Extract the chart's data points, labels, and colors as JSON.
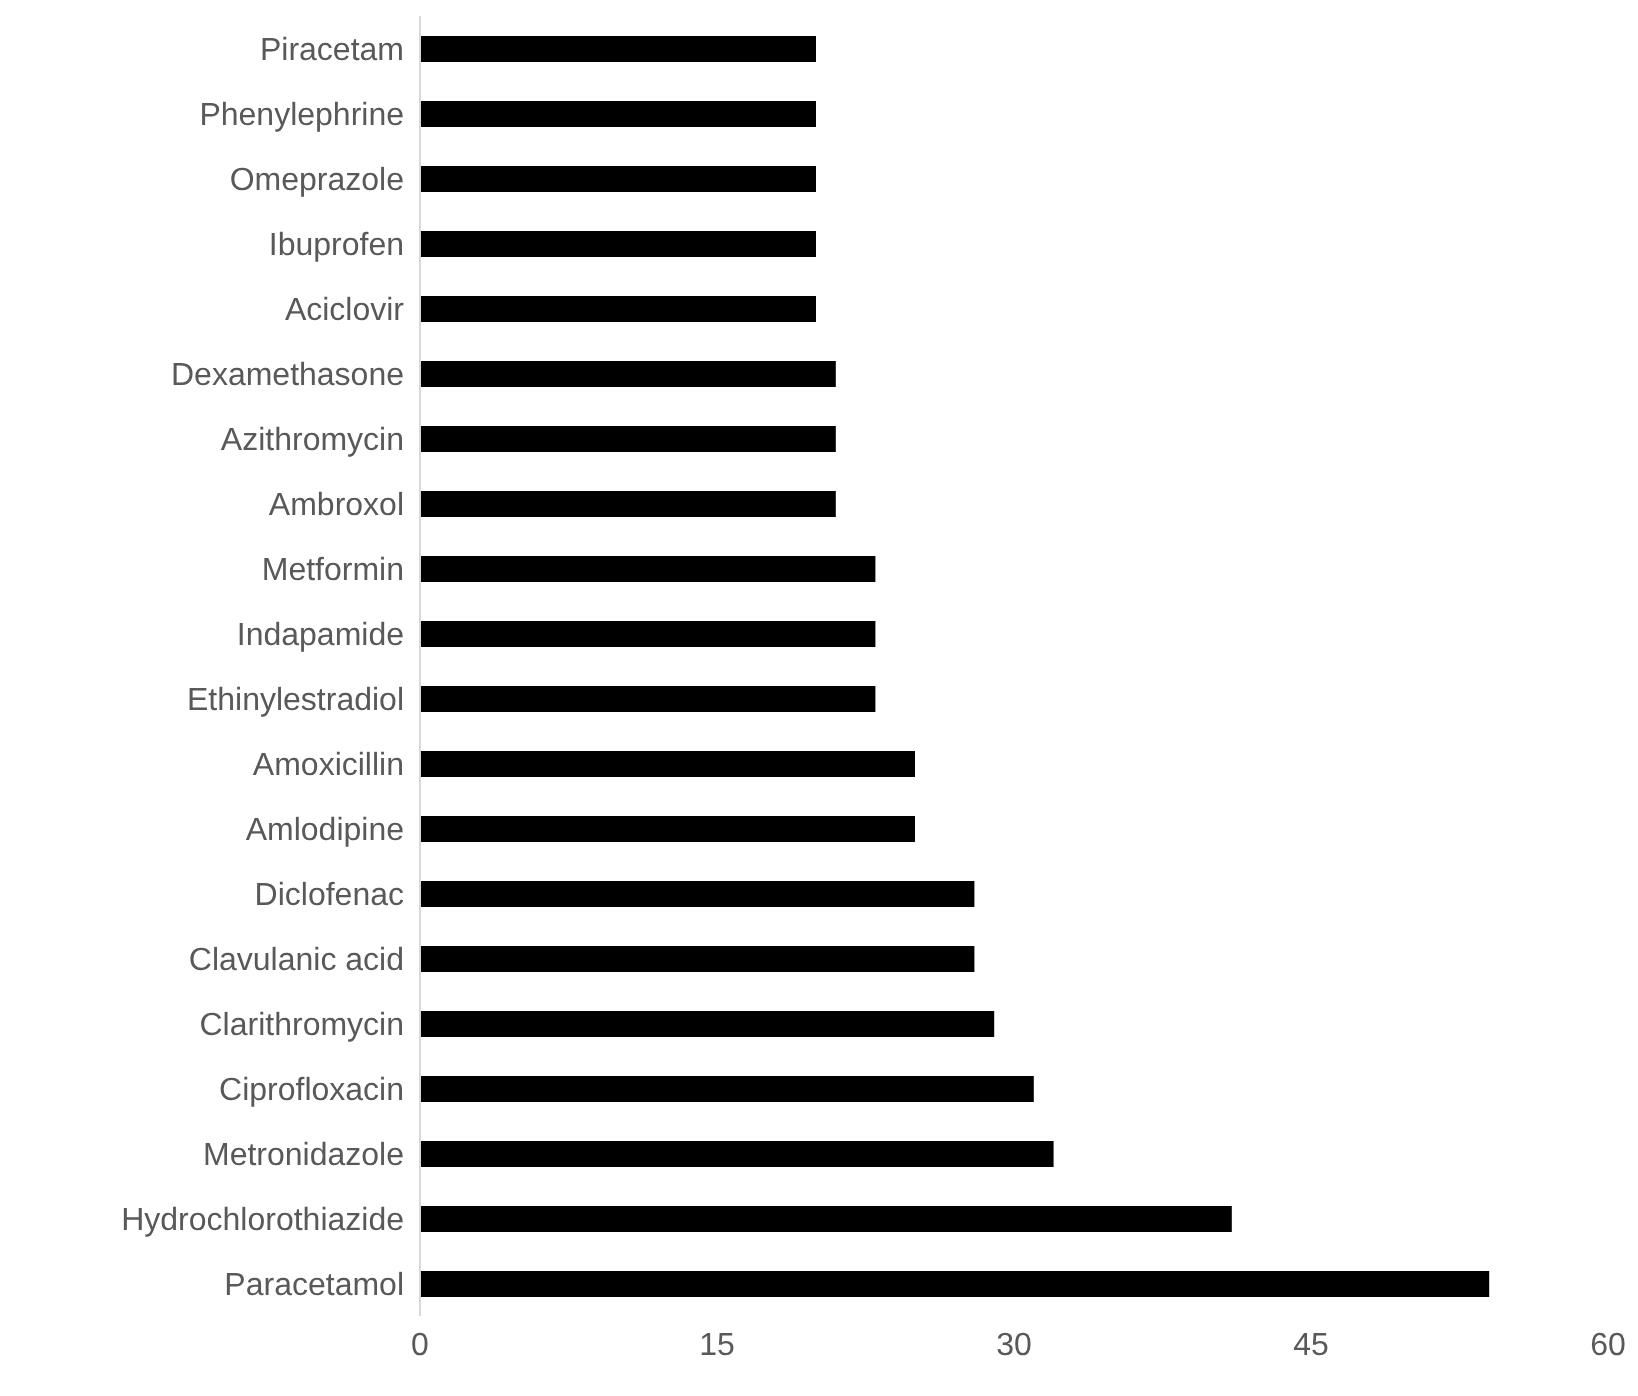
{
  "chart_data": {
    "type": "bar",
    "orientation": "horizontal",
    "categories": [
      "Piracetam",
      "Phenylephrine",
      "Omeprazole",
      "Ibuprofen",
      "Aciclovir",
      "Dexamethasone",
      "Azithromycin",
      "Ambroxol",
      "Metformin",
      "Indapamide",
      "Ethinylestradiol",
      "Amoxicillin",
      "Amlodipine",
      "Diclofenac",
      "Clavulanic acid",
      "Clarithromycin",
      "Ciprofloxacin",
      "Metronidazole",
      "Hydrochlorothiazide",
      "Paracetamol"
    ],
    "values": [
      20,
      20,
      20,
      20,
      20,
      21,
      21,
      21,
      23,
      23,
      23,
      25,
      25,
      28,
      28,
      29,
      31,
      32,
      41,
      54
    ],
    "color": "#000000",
    "xlim": [
      0,
      60
    ],
    "xticks": [
      0,
      15,
      30,
      45,
      60
    ],
    "grid": false
  }
}
